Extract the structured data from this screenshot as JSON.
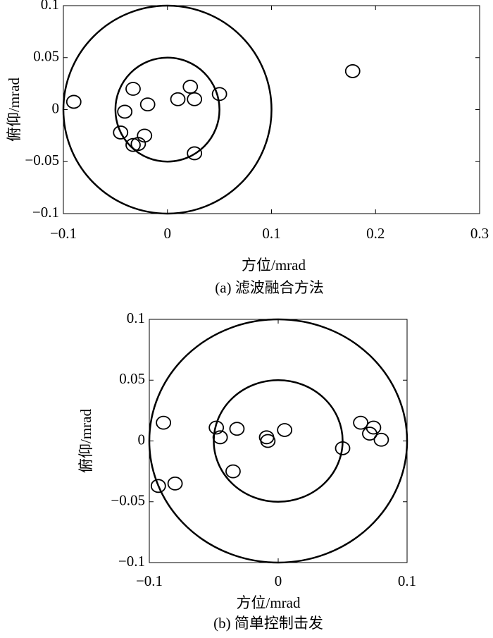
{
  "chart_data": [
    {
      "type": "scatter",
      "caption": "(a) 滤波融合方法",
      "x_label": "方位/mrad",
      "y_label": "俯仰/mrad",
      "color": "#000000",
      "xlim": [
        -0.1,
        0.3
      ],
      "ylim": [
        -0.1,
        0.1
      ],
      "xticks": [
        {
          "value": -0.1,
          "label": "−0.1"
        },
        0,
        0.1,
        0.2,
        0.3
      ],
      "yticks": [
        0.1,
        0.05,
        0,
        {
          "value": -0.05,
          "label": "−0.05"
        },
        {
          "value": -0.1,
          "label": "−0.1"
        }
      ],
      "circles": [
        0.05,
        0.1
      ],
      "x": [
        -0.09,
        0.178,
        -0.033,
        -0.019,
        -0.041,
        0.01,
        0.022,
        0.026,
        0.05,
        -0.045,
        -0.033,
        -0.028,
        -0.022,
        0.026
      ],
      "values": [
        0.0075,
        0.037,
        0.02,
        0.005,
        -0.002,
        0.01,
        0.022,
        0.01,
        0.015,
        -0.022,
        -0.034,
        -0.033,
        -0.025,
        -0.042
      ]
    },
    {
      "type": "scatter",
      "caption": "(b) 简单控制击发",
      "x_label": "方位/mrad",
      "y_label": "俯仰/mrad",
      "color": "#000000",
      "xlim": [
        -0.1,
        0.1
      ],
      "ylim": [
        -0.1,
        0.1
      ],
      "xticks": [
        {
          "value": -0.1,
          "label": "−0.1"
        },
        0,
        0.1
      ],
      "yticks": [
        0.1,
        0.05,
        0,
        {
          "value": -0.05,
          "label": "−0.05"
        },
        {
          "value": -0.1,
          "label": "−0.1"
        }
      ],
      "circles": [
        0.05,
        0.1
      ],
      "x": [
        -0.089,
        -0.093,
        -0.08,
        -0.048,
        -0.045,
        -0.032,
        -0.035,
        -0.009,
        -0.008,
        0.005,
        0.05,
        0.064,
        0.074,
        0.071,
        0.08
      ],
      "values": [
        0.015,
        -0.037,
        -0.035,
        0.011,
        0.003,
        0.01,
        -0.025,
        0.003,
        0,
        0.009,
        -0.006,
        0.015,
        0.011,
        0.006,
        0.001
      ]
    }
  ]
}
